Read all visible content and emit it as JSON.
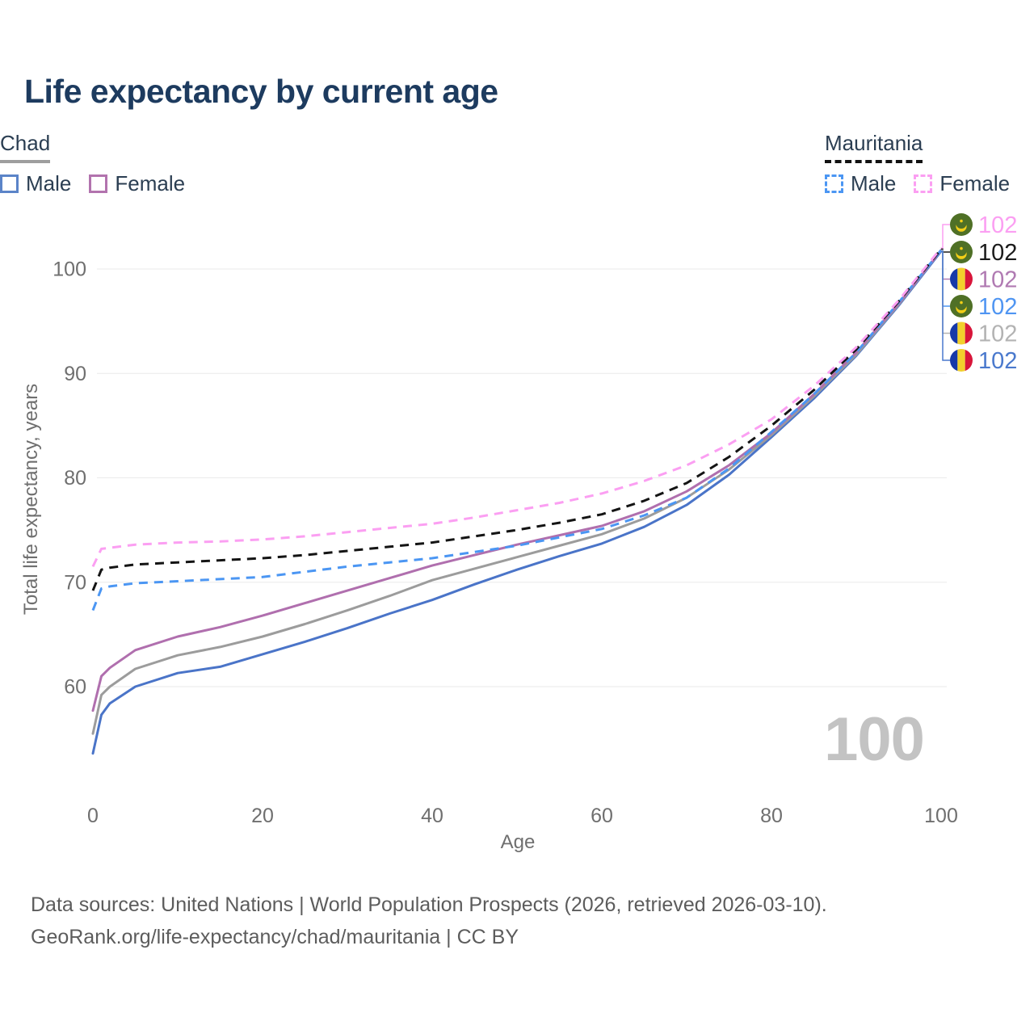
{
  "title": "Life expectancy by current age",
  "legend": {
    "groups": [
      {
        "name": "Chad",
        "underline_style": "solid",
        "underline_color": "#9e9e9e",
        "items": [
          {
            "label": "Male",
            "color": "#5b84c8",
            "dash": false
          },
          {
            "label": "Female",
            "color": "#b273ae",
            "dash": false
          }
        ]
      },
      {
        "name": "Mauritania",
        "underline_style": "dashed",
        "underline_color": "#121212",
        "items": [
          {
            "label": "Male",
            "color": "#4b96f3",
            "dash": true
          },
          {
            "label": "Female",
            "color": "#fb9ff2",
            "dash": true
          }
        ]
      }
    ]
  },
  "watermark_age": "100",
  "footer": {
    "line1": "Data sources: United Nations | World Population Prospects (2026, retrieved 2026-03-10).",
    "line2": "GeoRank.org/life-expectancy/chad/mauritania | CC BY"
  },
  "chart_data": {
    "type": "line",
    "title": "Life expectancy by current age",
    "xlabel": "Age",
    "ylabel": "Total life expectancy, years",
    "xlim": [
      0,
      100
    ],
    "ylim": [
      53,
      103
    ],
    "x_ticks": [
      0,
      20,
      40,
      60,
      80,
      100
    ],
    "y_ticks": [
      60,
      70,
      80,
      90,
      100
    ],
    "grid": "horizontal",
    "grid_color": "#eaeaea",
    "tick_color": "#6f6f6f",
    "legend_position": "top-right",
    "series": [
      {
        "id": "chad-male",
        "country": "Chad",
        "sex": "Male",
        "style": "solid",
        "color": "#4a74c8",
        "points": [
          [
            0,
            53.6
          ],
          [
            1,
            57.3
          ],
          [
            2,
            58.4
          ],
          [
            5,
            60.0
          ],
          [
            10,
            61.3
          ],
          [
            15,
            61.9
          ],
          [
            20,
            63.1
          ],
          [
            25,
            64.3
          ],
          [
            30,
            65.6
          ],
          [
            35,
            67.0
          ],
          [
            40,
            68.3
          ],
          [
            45,
            69.8
          ],
          [
            50,
            71.2
          ],
          [
            55,
            72.5
          ],
          [
            60,
            73.7
          ],
          [
            65,
            75.3
          ],
          [
            70,
            77.4
          ],
          [
            75,
            80.3
          ],
          [
            80,
            83.9
          ],
          [
            85,
            87.6
          ],
          [
            90,
            91.7
          ],
          [
            95,
            96.5
          ],
          [
            100,
            101.7
          ]
        ]
      },
      {
        "id": "chad-total",
        "country": "Chad",
        "sex": "Both",
        "style": "solid",
        "color": "#9c9c9c",
        "points": [
          [
            0,
            55.5
          ],
          [
            1,
            59.2
          ],
          [
            2,
            60.0
          ],
          [
            5,
            61.7
          ],
          [
            10,
            63.0
          ],
          [
            15,
            63.8
          ],
          [
            20,
            64.8
          ],
          [
            25,
            66.0
          ],
          [
            30,
            67.3
          ],
          [
            35,
            68.7
          ],
          [
            40,
            70.2
          ],
          [
            45,
            71.3
          ],
          [
            50,
            72.4
          ],
          [
            55,
            73.5
          ],
          [
            60,
            74.6
          ],
          [
            65,
            76.1
          ],
          [
            70,
            78.1
          ],
          [
            75,
            80.8
          ],
          [
            80,
            84.1
          ],
          [
            85,
            87.8
          ],
          [
            90,
            91.8
          ],
          [
            95,
            96.6
          ],
          [
            100,
            101.8
          ]
        ]
      },
      {
        "id": "chad-female",
        "country": "Chad",
        "sex": "Female",
        "style": "solid",
        "color": "#b06fae",
        "points": [
          [
            0,
            57.7
          ],
          [
            1,
            61.0
          ],
          [
            2,
            61.8
          ],
          [
            5,
            63.5
          ],
          [
            10,
            64.8
          ],
          [
            15,
            65.7
          ],
          [
            20,
            66.8
          ],
          [
            25,
            68.0
          ],
          [
            30,
            69.2
          ],
          [
            35,
            70.4
          ],
          [
            40,
            71.6
          ],
          [
            45,
            72.6
          ],
          [
            50,
            73.6
          ],
          [
            55,
            74.5
          ],
          [
            60,
            75.4
          ],
          [
            65,
            76.8
          ],
          [
            70,
            78.7
          ],
          [
            75,
            81.2
          ],
          [
            80,
            84.3
          ],
          [
            85,
            88.0
          ],
          [
            90,
            92.0
          ],
          [
            95,
            96.7
          ],
          [
            100,
            101.8
          ]
        ]
      },
      {
        "id": "mauritania-male",
        "country": "Mauritania",
        "sex": "Male",
        "style": "dashed",
        "color": "#4b96f3",
        "points": [
          [
            0,
            67.3
          ],
          [
            1,
            69.4
          ],
          [
            2,
            69.6
          ],
          [
            5,
            69.9
          ],
          [
            10,
            70.1
          ],
          [
            15,
            70.3
          ],
          [
            20,
            70.5
          ],
          [
            25,
            71.0
          ],
          [
            30,
            71.5
          ],
          [
            35,
            71.9
          ],
          [
            40,
            72.3
          ],
          [
            45,
            72.9
          ],
          [
            50,
            73.5
          ],
          [
            55,
            74.3
          ],
          [
            60,
            75.1
          ],
          [
            65,
            76.4
          ],
          [
            70,
            78.1
          ],
          [
            75,
            80.9
          ],
          [
            80,
            84.4
          ],
          [
            85,
            88.0
          ],
          [
            90,
            92.0
          ],
          [
            95,
            96.8
          ],
          [
            100,
            101.8
          ]
        ]
      },
      {
        "id": "mauritania-total",
        "country": "Mauritania",
        "sex": "Both",
        "style": "dashed",
        "color": "#141414",
        "points": [
          [
            0,
            69.2
          ],
          [
            1,
            71.2
          ],
          [
            2,
            71.4
          ],
          [
            5,
            71.7
          ],
          [
            10,
            71.9
          ],
          [
            15,
            72.1
          ],
          [
            20,
            72.3
          ],
          [
            25,
            72.6
          ],
          [
            30,
            73.0
          ],
          [
            35,
            73.4
          ],
          [
            40,
            73.8
          ],
          [
            45,
            74.4
          ],
          [
            50,
            75.0
          ],
          [
            55,
            75.7
          ],
          [
            60,
            76.5
          ],
          [
            65,
            77.8
          ],
          [
            70,
            79.5
          ],
          [
            75,
            82.0
          ],
          [
            80,
            85.0
          ],
          [
            85,
            88.4
          ],
          [
            90,
            92.3
          ],
          [
            95,
            96.9
          ],
          [
            100,
            101.9
          ]
        ]
      },
      {
        "id": "mauritania-female",
        "country": "Mauritania",
        "sex": "Female",
        "style": "dashed",
        "color": "#fb9ff2",
        "points": [
          [
            0,
            71.5
          ],
          [
            1,
            73.2
          ],
          [
            2,
            73.3
          ],
          [
            5,
            73.6
          ],
          [
            10,
            73.8
          ],
          [
            15,
            73.9
          ],
          [
            20,
            74.1
          ],
          [
            25,
            74.4
          ],
          [
            30,
            74.8
          ],
          [
            35,
            75.2
          ],
          [
            40,
            75.6
          ],
          [
            45,
            76.2
          ],
          [
            50,
            76.9
          ],
          [
            55,
            77.6
          ],
          [
            60,
            78.5
          ],
          [
            65,
            79.7
          ],
          [
            70,
            81.2
          ],
          [
            75,
            83.2
          ],
          [
            80,
            85.6
          ],
          [
            85,
            88.8
          ],
          [
            90,
            92.5
          ],
          [
            95,
            97.0
          ],
          [
            100,
            102.0
          ]
        ]
      }
    ],
    "end_labels": [
      {
        "series": "mauritania-female",
        "flag": "mauritania",
        "value": "102",
        "color": "#fb9ff2"
      },
      {
        "series": "mauritania-total",
        "flag": "mauritania",
        "value": "102",
        "color": "#1b1b1b"
      },
      {
        "series": "chad-female",
        "flag": "chad",
        "value": "102",
        "color": "#b07ab2"
      },
      {
        "series": "mauritania-male",
        "flag": "mauritania",
        "value": "102",
        "color": "#4f95f2"
      },
      {
        "series": "chad-total",
        "flag": "chad",
        "value": "102",
        "color": "#b3b3b3"
      },
      {
        "series": "chad-male",
        "flag": "chad",
        "value": "102",
        "color": "#4a79cd"
      }
    ],
    "flag_colors": {
      "mauritania_green": "#4f7026",
      "mauritania_gold": "#f2ce17",
      "chad_blue": "#1638a8",
      "chad_yellow": "#f2d02c",
      "chad_red": "#d8153a"
    }
  }
}
